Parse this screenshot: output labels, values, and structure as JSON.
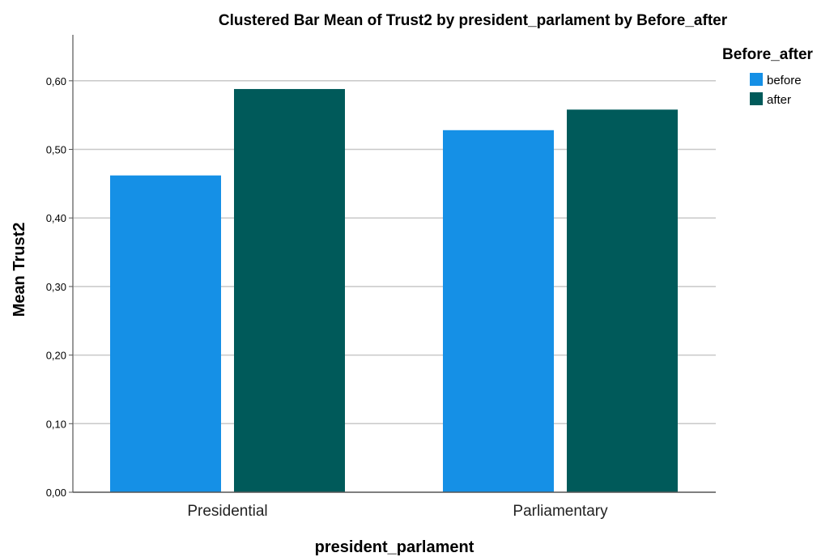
{
  "chart_data": {
    "type": "bar",
    "title": "Clustered Bar Mean of Trust2 by president_parlament by Before_after",
    "xlabel": "president_parlament",
    "ylabel": "Mean Trust2",
    "categories": [
      "Presidential",
      "Parliamentary"
    ],
    "series": [
      {
        "name": "before",
        "color": "#1590e6",
        "values": [
          0.462,
          0.528
        ]
      },
      {
        "name": "after",
        "color": "#005a5a",
        "values": [
          0.588,
          0.558
        ]
      }
    ],
    "ylim": [
      0,
      0.66
    ],
    "yticks": [
      0,
      0.1,
      0.2,
      0.3,
      0.4,
      0.5,
      0.6
    ],
    "ytick_labels": [
      "0,00",
      "0,10",
      "0,20",
      "0,30",
      "0,40",
      "0,50",
      "0,60"
    ],
    "grid": true,
    "legend": {
      "title": "Before_after",
      "placement": "top-right"
    }
  }
}
